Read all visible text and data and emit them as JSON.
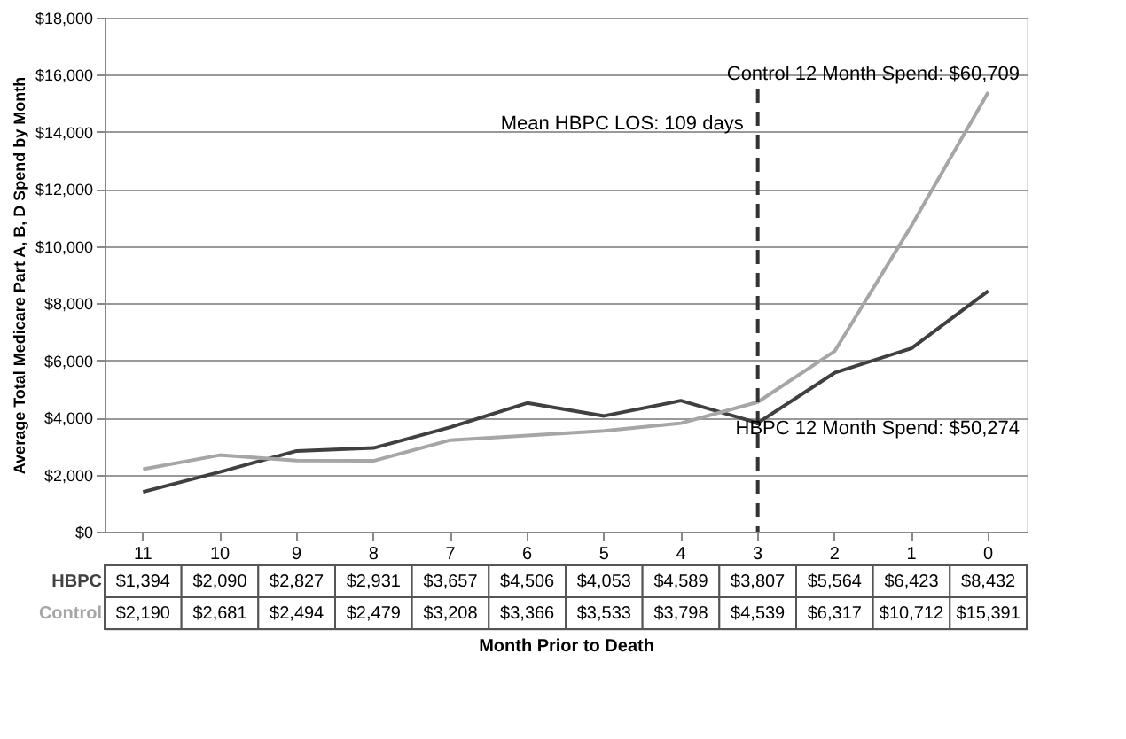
{
  "chart_data": {
    "type": "line",
    "xlabel": "Month Prior to Death",
    "ylabel": "Average Total Medicare Part A, B, D Spend by Month",
    "categories": [
      "11",
      "10",
      "9",
      "8",
      "7",
      "6",
      "5",
      "4",
      "3",
      "2",
      "1",
      "0"
    ],
    "series": [
      {
        "name": "HBPC",
        "color": "#404040",
        "values": [
          1394,
          2090,
          2827,
          2931,
          3657,
          4506,
          4053,
          4589,
          3807,
          5564,
          6423,
          8432
        ],
        "value_labels": [
          "$1,394",
          "$2,090",
          "$2,827",
          "$2,931",
          "$3,657",
          "$4,506",
          "$4,053",
          "$4,589",
          "$3,807",
          "$5,564",
          "$6,423",
          "$8,432"
        ]
      },
      {
        "name": "Control",
        "color": "#a6a6a6",
        "values": [
          2190,
          2681,
          2494,
          2479,
          3208,
          3366,
          3533,
          3798,
          4539,
          6317,
          10712,
          15391
        ],
        "value_labels": [
          "$2,190",
          "$2,681",
          "$2,494",
          "$2,479",
          "$3,208",
          "$3,366",
          "$3,533",
          "$3,798",
          "$4,539",
          "$6,317",
          "$10,712",
          "$15,391"
        ]
      }
    ],
    "ylim": [
      0,
      18000
    ],
    "yticks": [
      {
        "value": 0,
        "label": "$0"
      },
      {
        "value": 2000,
        "label": "$2,000"
      },
      {
        "value": 4000,
        "label": "$4,000"
      },
      {
        "value": 6000,
        "label": "$6,000"
      },
      {
        "value": 8000,
        "label": "$8,000"
      },
      {
        "value": 10000,
        "label": "$10,000"
      },
      {
        "value": 12000,
        "label": "$12,000"
      },
      {
        "value": 14000,
        "label": "$14,000"
      },
      {
        "value": 16000,
        "label": "$16,000"
      },
      {
        "value": 18000,
        "label": "$18,000"
      }
    ],
    "grid": "y",
    "legend": "bottom",
    "marker": "none",
    "line_style": "solid",
    "ref_lines": [
      {
        "axis": "x",
        "value": "3",
        "label": "Mean HBPC LOS: 109 days",
        "line_style": "dashed",
        "color": "#333333"
      }
    ],
    "annotations": [
      "Control 12 Month Spend: $60,709",
      "HBPC 12 Month Spend: $50,274"
    ]
  }
}
